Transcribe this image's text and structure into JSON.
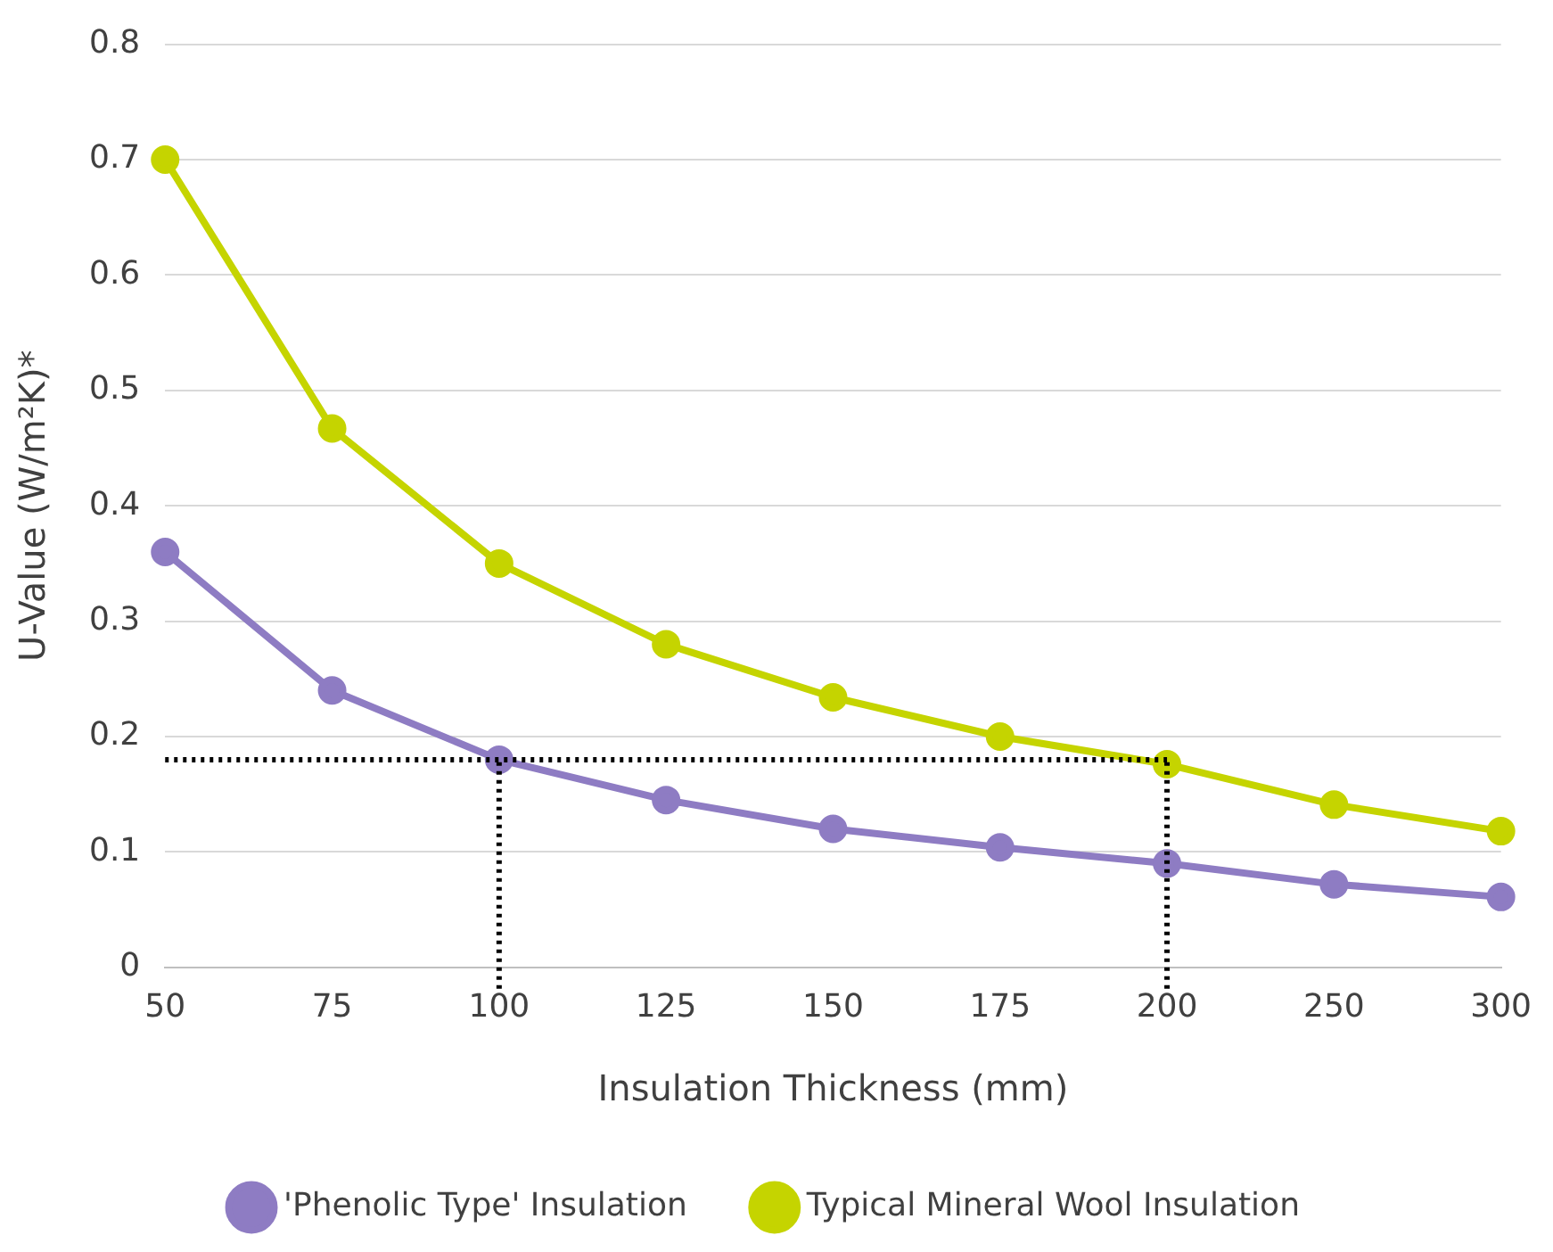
{
  "chart_data": {
    "type": "line",
    "xlabel": "Insulation Thickness (mm)",
    "ylabel": "U-Value (W/m²K)*",
    "categories": [
      "50",
      "75",
      "100",
      "125",
      "150",
      "175",
      "200",
      "250",
      "300"
    ],
    "series": [
      {
        "name": "'Phenolic Type' Insulation",
        "color": "#8e7cc3",
        "values": [
          0.36,
          0.24,
          0.18,
          0.145,
          0.12,
          0.104,
          0.09,
          0.072,
          0.061
        ]
      },
      {
        "name": "Typical Mineral Wool Insulation",
        "color": "#c5d400",
        "values": [
          0.7,
          0.467,
          0.35,
          0.28,
          0.234,
          0.2,
          0.176,
          0.141,
          0.118
        ]
      }
    ],
    "ylim": [
      0,
      0.8
    ],
    "yticks": [
      0,
      0.1,
      0.2,
      0.3,
      0.4,
      0.5,
      0.6,
      0.7,
      0.8
    ],
    "ref_lines": [
      {
        "axis": "y",
        "value": 0.18,
        "color": "#000000",
        "line_style": "dotted"
      },
      {
        "axis": "x",
        "value": "100",
        "color": "#000000",
        "line_style": "dotted"
      },
      {
        "axis": "x",
        "value": "200",
        "color": "#000000",
        "line_style": "dotted"
      }
    ],
    "grid": "y",
    "legend": "bottom",
    "marker": "circle",
    "line_style": "solid"
  }
}
